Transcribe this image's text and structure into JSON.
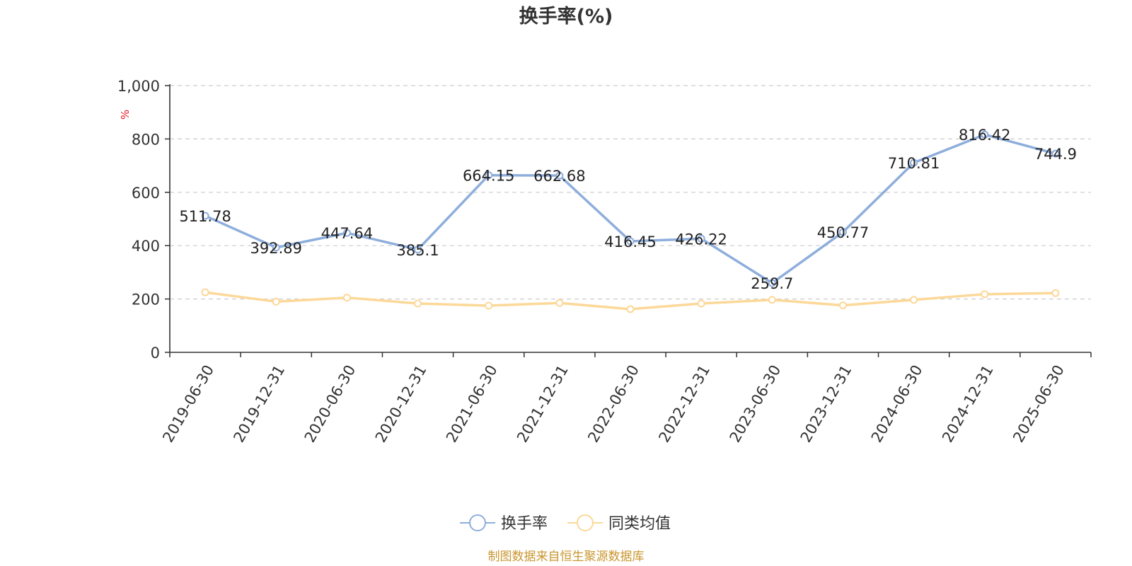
{
  "chart_data": {
    "type": "line",
    "title": "换手率(%)",
    "y_unit": "%",
    "ylim": [
      0,
      1000
    ],
    "y_ticks": [
      0,
      200,
      400,
      600,
      800,
      1000
    ],
    "y_tick_labels": [
      "0",
      "200",
      "400",
      "600",
      "800",
      "1,000"
    ],
    "grid": "horizontal dashed",
    "legend_position": "bottom-center",
    "categories": [
      "2019-06-30",
      "2019-12-31",
      "2020-06-30",
      "2020-12-31",
      "2021-06-30",
      "2021-12-31",
      "2022-06-30",
      "2022-12-31",
      "2023-06-30",
      "2023-12-31",
      "2024-06-30",
      "2024-12-31",
      "2025-06-30"
    ],
    "series": [
      {
        "name": "换手率",
        "color": "#8eaedc",
        "values": [
          511.78,
          392.89,
          447.64,
          385.1,
          664.15,
          662.68,
          416.45,
          426.22,
          259.7,
          450.77,
          710.81,
          816.42,
          744.9
        ],
        "labels": [
          "511.78",
          "392.89",
          "447.64",
          "385.1",
          "664.15",
          "662.68",
          "416.45",
          "426.22",
          "259.7",
          "450.77",
          "710.81",
          "816.42",
          "744.9"
        ]
      },
      {
        "name": "同类均值",
        "color": "#fcd899",
        "values": [
          225,
          190,
          205,
          183,
          175,
          185,
          162,
          183,
          197,
          176,
          197,
          218,
          222
        ]
      }
    ]
  },
  "source": "制图数据来自恒生聚源数据库",
  "colors": {
    "axis": "#333333",
    "grid": "#cccccc",
    "unit": "#e0141e",
    "source": "#c9962f"
  }
}
